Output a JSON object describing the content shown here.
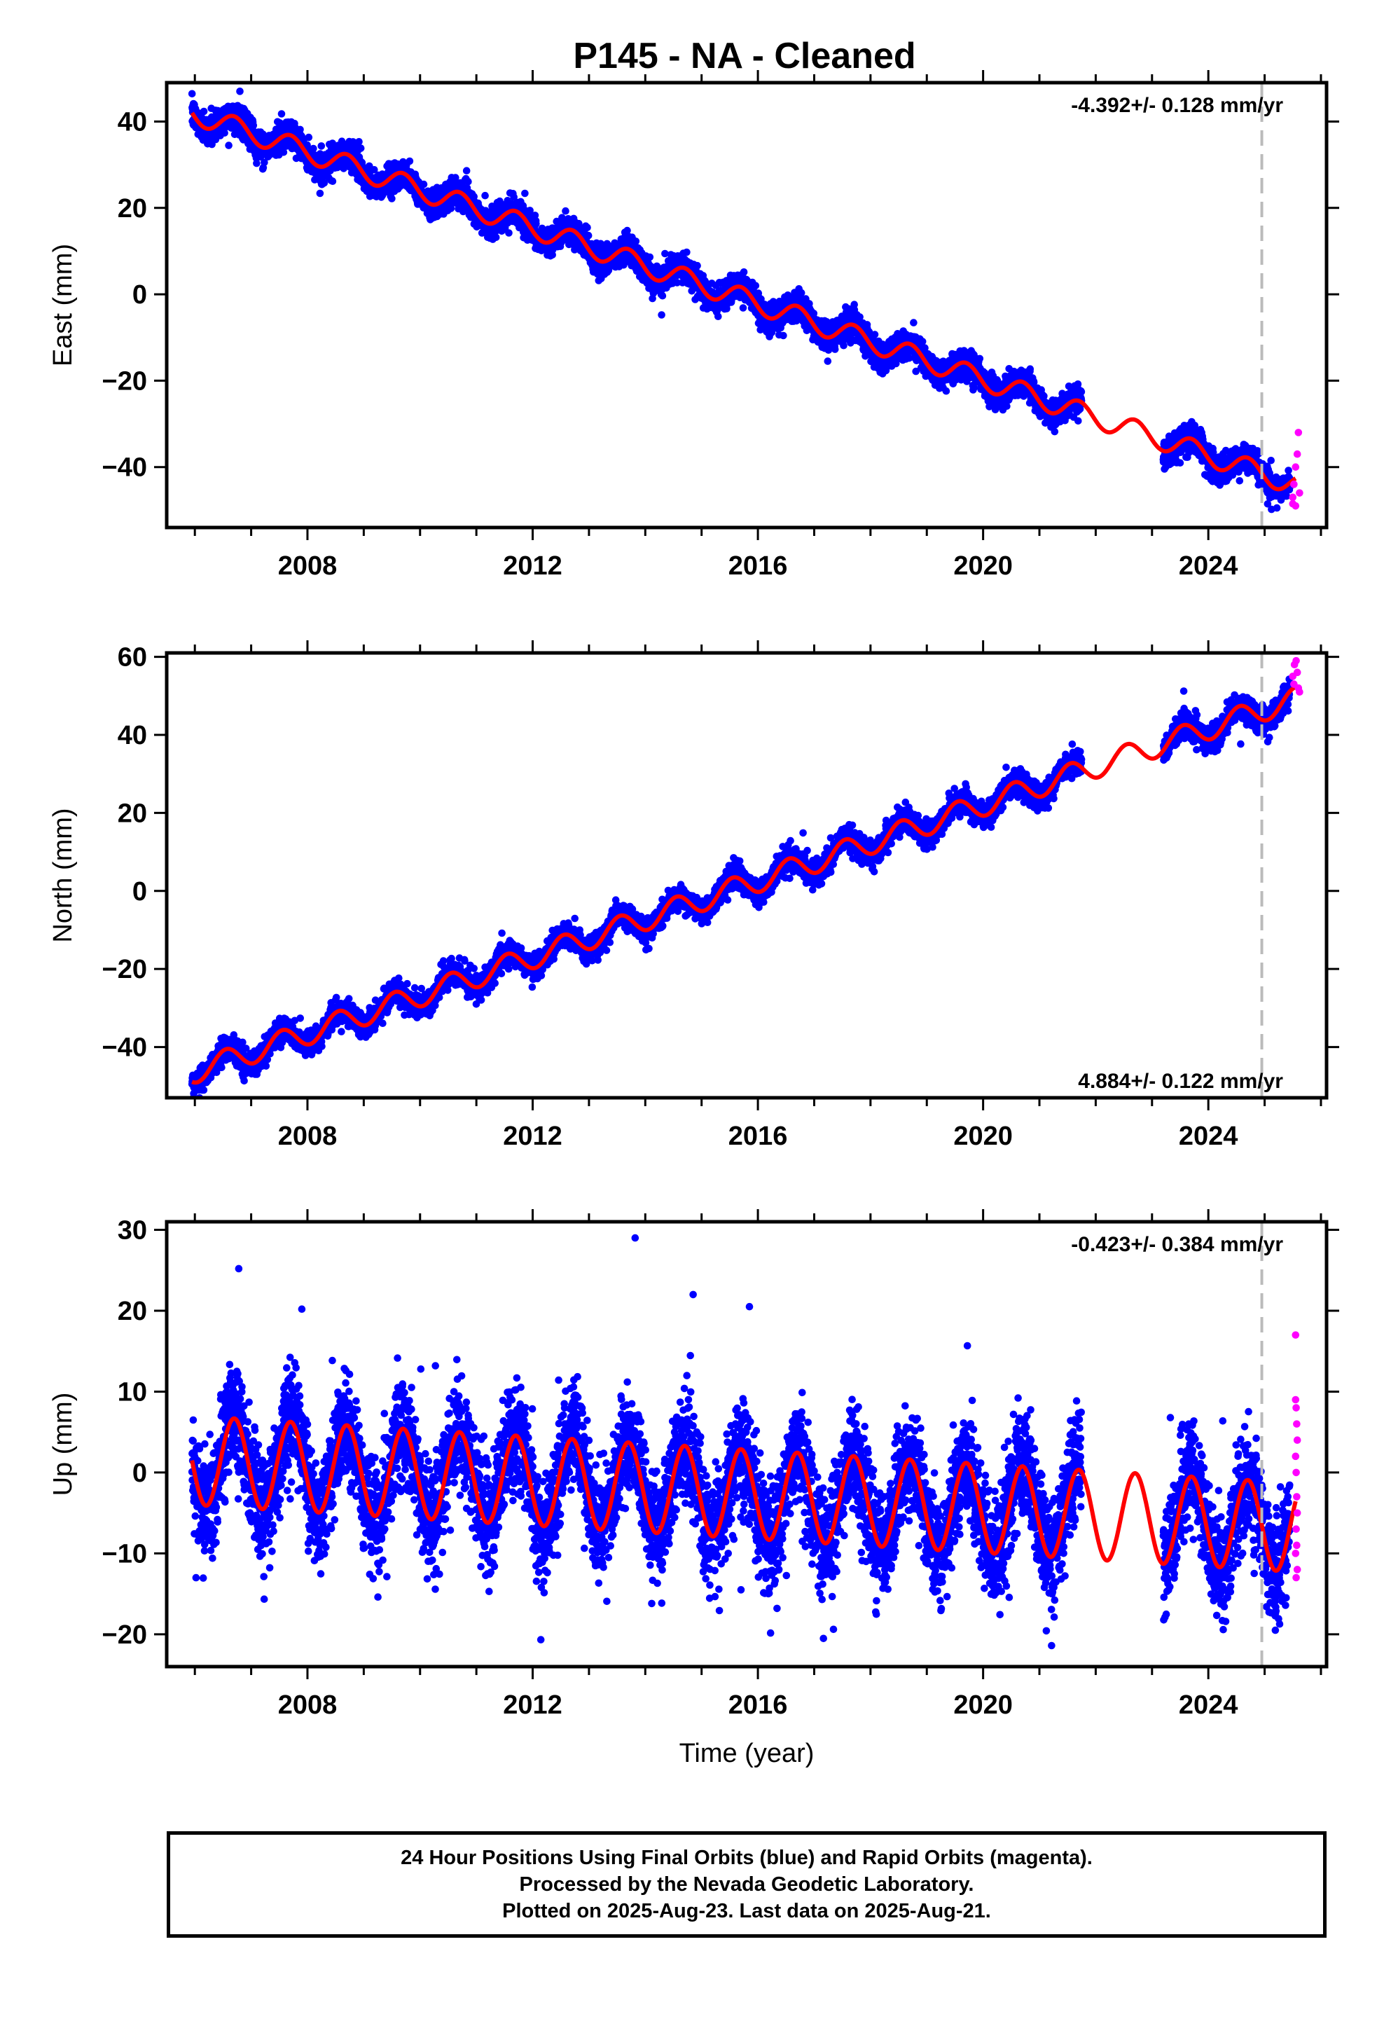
{
  "title": "P145  - NA - Cleaned",
  "colors": {
    "final_orbits": "#0000ff",
    "rapid_orbits": "#ff00ff",
    "model": "#ff0000",
    "marker_line": "#bbbbbb"
  },
  "chart_data": [
    {
      "type": "scatter",
      "component": "East",
      "ylabel": "East (mm)",
      "xlabel": "",
      "xlim": [
        2005.5,
        2026.1
      ],
      "ylim": [
        -54,
        49
      ],
      "xticks": [
        2008,
        2012,
        2016,
        2020,
        2024
      ],
      "yticks": [
        -40,
        -20,
        0,
        20,
        40
      ],
      "rate_label": "-4.392+/- 0.128 mm/yr",
      "rate_position": "top-right",
      "marker_line_x": 2024.95,
      "model": {
        "start": 2005.95,
        "end": 2025.55,
        "intercept_at_start": 42.0,
        "rate_mm_per_yr": -4.392,
        "annual_amplitude": 2.5,
        "annual_phase_peak": 0.7
      },
      "final_orbits_series": {
        "name": "",
        "segments": [
          [
            2005.95,
            2021.75
          ],
          [
            2023.2,
            2025.45
          ]
        ],
        "scatter_sd": 1.6,
        "outliers": [
          [
            2006.8,
            47.0
          ]
        ]
      },
      "rapid_orbits_series": {
        "name": "",
        "x_range": [
          2025.45,
          2025.63
        ],
        "points": [
          [
            2025.5,
            -47
          ],
          [
            2025.52,
            -44
          ],
          [
            2025.55,
            -40
          ],
          [
            2025.58,
            -37
          ],
          [
            2025.6,
            -32
          ],
          [
            2025.62,
            -46
          ],
          [
            2025.55,
            -49
          ],
          [
            2025.5,
            -48.5
          ]
        ]
      }
    },
    {
      "type": "scatter",
      "component": "North",
      "ylabel": "North (mm)",
      "xlabel": "",
      "xlim": [
        2005.5,
        2026.1
      ],
      "ylim": [
        -53,
        61
      ],
      "xticks": [
        2008,
        2012,
        2016,
        2020,
        2024
      ],
      "yticks": [
        -40,
        -20,
        0,
        20,
        40,
        60
      ],
      "rate_label": "4.884+/- 0.122 mm/yr",
      "rate_position": "bottom-right",
      "marker_line_x": 2024.95,
      "model": {
        "start": 2005.95,
        "end": 2025.55,
        "intercept_at_start": -46.5,
        "rate_mm_per_yr": 4.884,
        "annual_amplitude": 3.0,
        "annual_phase_peak": 0.55
      },
      "final_orbits_series": {
        "name": "",
        "segments": [
          [
            2005.95,
            2021.75
          ],
          [
            2023.2,
            2025.45
          ]
        ],
        "scatter_sd": 1.5,
        "outliers": []
      },
      "rapid_orbits_series": {
        "name": "",
        "x_range": [
          2025.45,
          2025.63
        ],
        "points": [
          [
            2025.5,
            55
          ],
          [
            2025.53,
            58
          ],
          [
            2025.56,
            59
          ],
          [
            2025.6,
            52
          ],
          [
            2025.62,
            51
          ],
          [
            2025.58,
            56
          ],
          [
            2025.52,
            53
          ]
        ]
      }
    },
    {
      "type": "scatter",
      "component": "Up",
      "ylabel": "Up (mm)",
      "xlabel": "Time (year)",
      "xlim": [
        2005.5,
        2026.1
      ],
      "ylim": [
        -24,
        31
      ],
      "xticks": [
        2008,
        2012,
        2016,
        2020,
        2024
      ],
      "yticks": [
        -20,
        -10,
        0,
        10,
        20,
        30
      ],
      "rate_label": "-0.423+/- 0.384 mm/yr",
      "rate_position": "top-right",
      "marker_line_x": 2024.95,
      "model": {
        "start": 2005.95,
        "end": 2025.55,
        "intercept_at_start": 1.5,
        "rate_mm_per_yr": -0.423,
        "annual_amplitude": 5.5,
        "annual_phase_peak": 0.7
      },
      "final_orbits_series": {
        "name": "",
        "segments": [
          [
            2005.95,
            2021.75
          ],
          [
            2023.2,
            2025.45
          ]
        ],
        "scatter_sd": 3.3,
        "outliers": [
          [
            2006.78,
            25.2
          ],
          [
            2013.82,
            29.0
          ],
          [
            2014.85,
            22.0
          ],
          [
            2015.85,
            20.5
          ],
          [
            2007.9,
            20.2
          ],
          [
            2015.7,
            -14.5
          ]
        ]
      },
      "rapid_orbits_series": {
        "name": "",
        "x_range": [
          2025.45,
          2025.63
        ],
        "points": [
          [
            2025.55,
            17
          ],
          [
            2025.55,
            9
          ],
          [
            2025.56,
            8
          ],
          [
            2025.57,
            6
          ],
          [
            2025.58,
            4
          ],
          [
            2025.55,
            2
          ],
          [
            2025.56,
            0
          ],
          [
            2025.57,
            -3
          ],
          [
            2025.58,
            -5
          ],
          [
            2025.56,
            -7
          ],
          [
            2025.57,
            -9
          ],
          [
            2025.55,
            -10
          ],
          [
            2025.58,
            -12
          ],
          [
            2025.56,
            -13
          ]
        ]
      }
    }
  ],
  "footer": {
    "line1": "24 Hour Positions Using Final Orbits (blue) and Rapid Orbits (magenta).",
    "line2": "Processed by the Nevada Geodetic Laboratory.",
    "line3": "Plotted on 2025-Aug-23. Last data on 2025-Aug-21."
  }
}
